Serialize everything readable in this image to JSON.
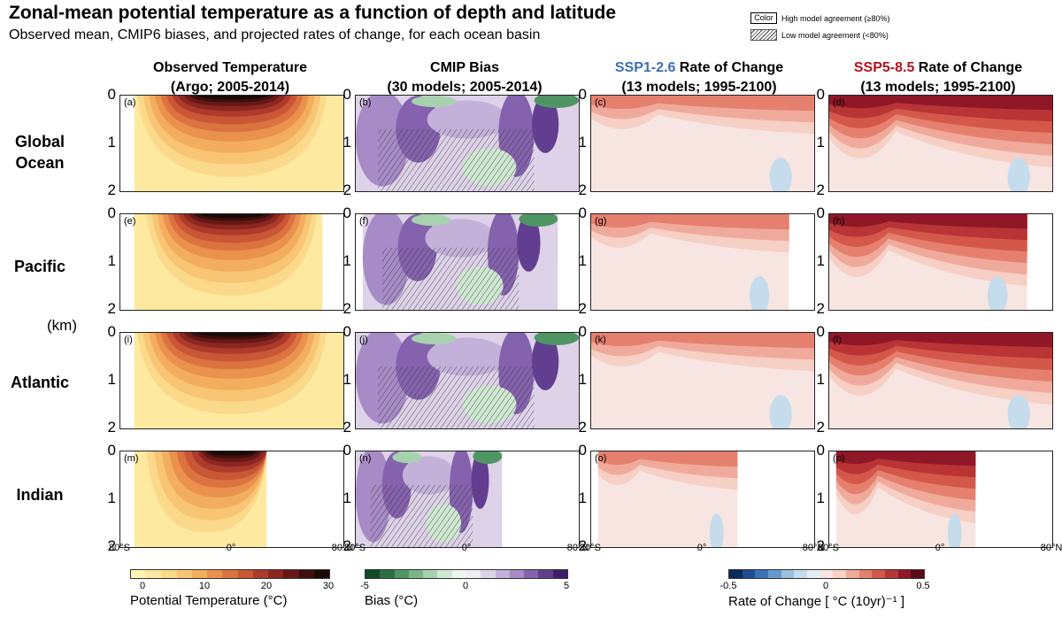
{
  "header": {
    "title": "Zonal-mean potential temperature as a function of depth and latitude",
    "subtitle": "Observed mean, CMIP6 biases, and projected rates of change, for each ocean basin"
  },
  "key": {
    "color_box": "Color",
    "high_label": "High model agreement (≥80%)",
    "low_label": "Low model agreement (<80%)"
  },
  "columns": [
    {
      "line1": "Observed Temperature",
      "line2": "(Argo; 2005-2014)"
    },
    {
      "line1": "CMIP Bias",
      "line2": "(30 models; 2005-2014)"
    },
    {
      "scenario": "SSP1-2.6",
      "line1_rest": " Rate of Change",
      "line2": "(13 models; 1995-2100)"
    },
    {
      "scenario": "SSP5-8.5",
      "line1_rest": " Rate of Change",
      "line2": "(13 models; 1995-2100)"
    }
  ],
  "rows": [
    {
      "label1": "Global",
      "label2": "Ocean"
    },
    {
      "label1": "Pacific",
      "label2": ""
    },
    {
      "label1": "Atlantic",
      "label2": ""
    },
    {
      "label1": "Indian",
      "label2": ""
    }
  ],
  "y_unit": "(km)",
  "y_ticks": [
    "0",
    "1",
    "2"
  ],
  "x_ticks": [
    "80°S",
    "0°",
    "80°N"
  ],
  "panel_letters": [
    "(a)",
    "(b)",
    "(c)",
    "(d)",
    "(e)",
    "(f)",
    "(g)",
    "(h)",
    "(i)",
    "(j)",
    "(k)",
    "(l)",
    "(m)",
    "(n)",
    "(o)",
    "(p)"
  ],
  "colorbars": {
    "temperature": {
      "ticks": [
        "0",
        "10",
        "20",
        "30"
      ],
      "title": "Potential Temperature (°C)",
      "colors": [
        "#fff4b3",
        "#fde9a0",
        "#fbd98a",
        "#f8c574",
        "#f3ad5f",
        "#e9914d",
        "#db7340",
        "#c95635",
        "#ad3b2b",
        "#8c2620",
        "#661817",
        "#3d0f0e",
        "#1b0a05"
      ]
    },
    "bias": {
      "ticks": [
        "-5",
        "0",
        "5"
      ],
      "title": "Bias (°C)",
      "colors": [
        "#0f4a2a",
        "#2d6e45",
        "#4f9563",
        "#7ab688",
        "#a7d2ae",
        "#cfe8d2",
        "#eef6ee",
        "#f1edf5",
        "#ddd2e8",
        "#c4b1da",
        "#a78bc6",
        "#8562ad",
        "#623e90",
        "#3f1f6a"
      ]
    },
    "rate": {
      "ticks": [
        "-0.5",
        "0",
        "0.5"
      ],
      "title": "Rate of Change [ °C (10yr)⁻¹ ]",
      "colors": [
        "#0b2b5c",
        "#1e4d8f",
        "#3a73b5",
        "#6699cb",
        "#9ac0de",
        "#c4dcec",
        "#e3eef5",
        "#f7e5e1",
        "#f6cfc5",
        "#f0aa9b",
        "#e5806f",
        "#d4584a",
        "#b83435",
        "#8f1728",
        "#5c0a1a"
      ]
    }
  },
  "chart_data": [
    {
      "type": "heatmap",
      "panel": "(a)",
      "row": "Global Ocean",
      "column": "Observed Temperature",
      "x_range": [
        -80,
        80
      ],
      "y_range_km": [
        0,
        2
      ],
      "lat_coverage": [
        -70,
        80
      ],
      "z_range": [
        0,
        30
      ],
      "peak_value": 29,
      "peak_lat": 0,
      "colorbar": "temperature"
    },
    {
      "type": "heatmap",
      "panel": "(b)",
      "row": "Global Ocean",
      "column": "CMIP Bias",
      "x_range": [
        -80,
        80
      ],
      "y_range_km": [
        0,
        2
      ],
      "lat_coverage": [
        -80,
        80
      ],
      "z_range": [
        -5,
        5
      ],
      "colorbar": "bias"
    },
    {
      "type": "heatmap",
      "panel": "(c)",
      "row": "Global Ocean",
      "column": "SSP1-2.6 Rate of Change",
      "x_range": [
        -80,
        80
      ],
      "y_range_km": [
        0,
        2
      ],
      "lat_coverage": [
        -80,
        80
      ],
      "z_range": [
        -0.5,
        0.5
      ],
      "colorbar": "rate"
    },
    {
      "type": "heatmap",
      "panel": "(d)",
      "row": "Global Ocean",
      "column": "SSP5-8.5 Rate of Change",
      "x_range": [
        -80,
        80
      ],
      "y_range_km": [
        0,
        2
      ],
      "lat_coverage": [
        -80,
        80
      ],
      "z_range": [
        -0.5,
        0.5
      ],
      "colorbar": "rate"
    },
    {
      "type": "heatmap",
      "panel": "(e)",
      "row": "Pacific",
      "column": "Observed Temperature",
      "x_range": [
        -80,
        80
      ],
      "y_range_km": [
        0,
        2
      ],
      "lat_coverage": [
        -70,
        65
      ],
      "z_range": [
        0,
        30
      ],
      "colorbar": "temperature"
    },
    {
      "type": "heatmap",
      "panel": "(f)",
      "row": "Pacific",
      "column": "CMIP Bias",
      "x_range": [
        -80,
        80
      ],
      "y_range_km": [
        0,
        2
      ],
      "lat_coverage": [
        -75,
        65
      ],
      "z_range": [
        -5,
        5
      ],
      "colorbar": "bias"
    },
    {
      "type": "heatmap",
      "panel": "(g)",
      "row": "Pacific",
      "column": "SSP1-2.6 Rate of Change",
      "x_range": [
        -80,
        80
      ],
      "y_range_km": [
        0,
        2
      ],
      "lat_coverage": [
        -80,
        62
      ],
      "z_range": [
        -0.5,
        0.5
      ],
      "colorbar": "rate"
    },
    {
      "type": "heatmap",
      "panel": "(h)",
      "row": "Pacific",
      "column": "SSP5-8.5 Rate of Change",
      "x_range": [
        -80,
        80
      ],
      "y_range_km": [
        0,
        2
      ],
      "lat_coverage": [
        -80,
        62
      ],
      "z_range": [
        -0.5,
        0.5
      ],
      "colorbar": "rate"
    },
    {
      "type": "heatmap",
      "panel": "(i)",
      "row": "Atlantic",
      "column": "Observed Temperature",
      "x_range": [
        -80,
        80
      ],
      "y_range_km": [
        0,
        2
      ],
      "lat_coverage": [
        -70,
        80
      ],
      "z_range": [
        0,
        30
      ],
      "colorbar": "temperature"
    },
    {
      "type": "heatmap",
      "panel": "(j)",
      "row": "Atlantic",
      "column": "CMIP Bias",
      "x_range": [
        -80,
        80
      ],
      "y_range_km": [
        0,
        2
      ],
      "lat_coverage": [
        -80,
        80
      ],
      "z_range": [
        -5,
        5
      ],
      "colorbar": "bias"
    },
    {
      "type": "heatmap",
      "panel": "(k)",
      "row": "Atlantic",
      "column": "SSP1-2.6 Rate of Change",
      "x_range": [
        -80,
        80
      ],
      "y_range_km": [
        0,
        2
      ],
      "lat_coverage": [
        -80,
        80
      ],
      "z_range": [
        -0.5,
        0.5
      ],
      "colorbar": "rate"
    },
    {
      "type": "heatmap",
      "panel": "(l)",
      "row": "Atlantic",
      "column": "SSP5-8.5 Rate of Change",
      "x_range": [
        -80,
        80
      ],
      "y_range_km": [
        0,
        2
      ],
      "lat_coverage": [
        -80,
        80
      ],
      "z_range": [
        -0.5,
        0.5
      ],
      "colorbar": "rate"
    },
    {
      "type": "heatmap",
      "panel": "(m)",
      "row": "Indian",
      "column": "Observed Temperature",
      "x_range": [
        -80,
        80
      ],
      "y_range_km": [
        0,
        2
      ],
      "lat_coverage": [
        -70,
        25
      ],
      "z_range": [
        0,
        30
      ],
      "colorbar": "temperature"
    },
    {
      "type": "heatmap",
      "panel": "(n)",
      "row": "Indian",
      "column": "CMIP Bias",
      "x_range": [
        -80,
        80
      ],
      "y_range_km": [
        0,
        2
      ],
      "lat_coverage": [
        -80,
        25
      ],
      "z_range": [
        -5,
        5
      ],
      "colorbar": "bias"
    },
    {
      "type": "heatmap",
      "panel": "(o)",
      "row": "Indian",
      "column": "SSP1-2.6 Rate of Change",
      "x_range": [
        -80,
        80
      ],
      "y_range_km": [
        0,
        2
      ],
      "lat_coverage": [
        -75,
        25
      ],
      "z_range": [
        -0.5,
        0.5
      ],
      "colorbar": "rate"
    },
    {
      "type": "heatmap",
      "panel": "(p)",
      "row": "Indian",
      "column": "SSP5-8.5 Rate of Change",
      "x_range": [
        -80,
        80
      ],
      "y_range_km": [
        0,
        2
      ],
      "lat_coverage": [
        -75,
        25
      ],
      "z_range": [
        -0.5,
        0.5
      ],
      "colorbar": "rate"
    }
  ]
}
